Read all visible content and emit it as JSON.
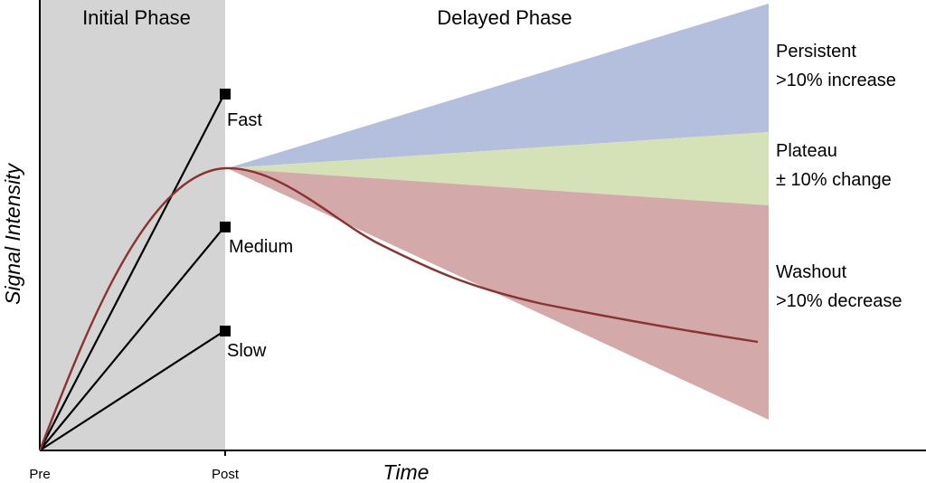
{
  "phases": {
    "initial": "Initial Phase",
    "delayed": "Delayed Phase"
  },
  "axes": {
    "ylabel": "Signal Intensity",
    "xlabel": "Time",
    "ticks": [
      "Pre",
      "Post"
    ]
  },
  "uptake": [
    {
      "label": "Fast"
    },
    {
      "label": "Medium"
    },
    {
      "label": "Slow"
    }
  ],
  "curve_types": [
    {
      "name": "Persistent",
      "desc": ">10% increase",
      "color": "#b4bfde"
    },
    {
      "name": "Plateau",
      "desc": "± 10% change",
      "color": "#d5e2b7"
    },
    {
      "name": "Washout",
      "desc": ">10% decrease",
      "color": "#d3a9a9"
    }
  ],
  "colors": {
    "initial_band": "#d4d4d4",
    "curve": "#8b3332",
    "lines": "#000000"
  }
}
